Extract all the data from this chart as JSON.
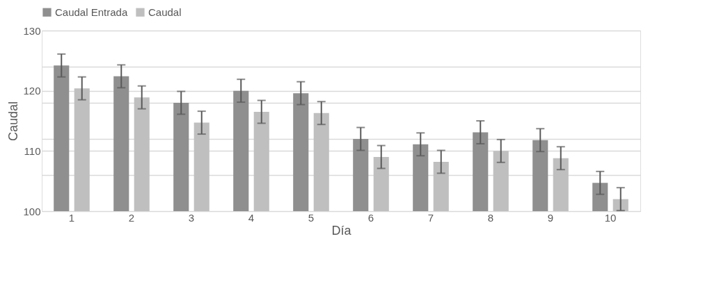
{
  "chart_data": {
    "type": "bar",
    "xlabel": "Día",
    "ylabel": "Caudal",
    "categories": [
      "1",
      "2",
      "3",
      "4",
      "5",
      "6",
      "7",
      "8",
      "9",
      "10"
    ],
    "series": [
      {
        "name": "Caudal Entrada",
        "color": "#8f8f8f",
        "values": [
          124.2,
          122.4,
          118.0,
          120.0,
          119.6,
          112.0,
          111.1,
          113.1,
          111.8,
          104.7
        ],
        "errors": [
          1.9,
          1.9,
          1.9,
          1.9,
          1.9,
          1.9,
          1.9,
          1.9,
          1.9,
          1.9
        ]
      },
      {
        "name": "Caudal",
        "color": "#bfbfbf",
        "values": [
          120.4,
          118.9,
          114.7,
          116.5,
          116.3,
          109.0,
          108.2,
          110.0,
          108.8,
          102.0
        ],
        "errors": [
          1.9,
          1.9,
          1.9,
          1.9,
          1.9,
          1.9,
          1.9,
          1.9,
          1.9,
          1.9
        ]
      }
    ],
    "ylim": [
      100,
      130
    ],
    "yticks": [
      100,
      {
        "value": 106,
        "label": null
      },
      110,
      {
        "value": 112,
        "label": null
      },
      {
        "value": 118,
        "label": null
      },
      120,
      {
        "value": 124,
        "label": null
      },
      130
    ],
    "grid": "y",
    "legend": "top"
  }
}
